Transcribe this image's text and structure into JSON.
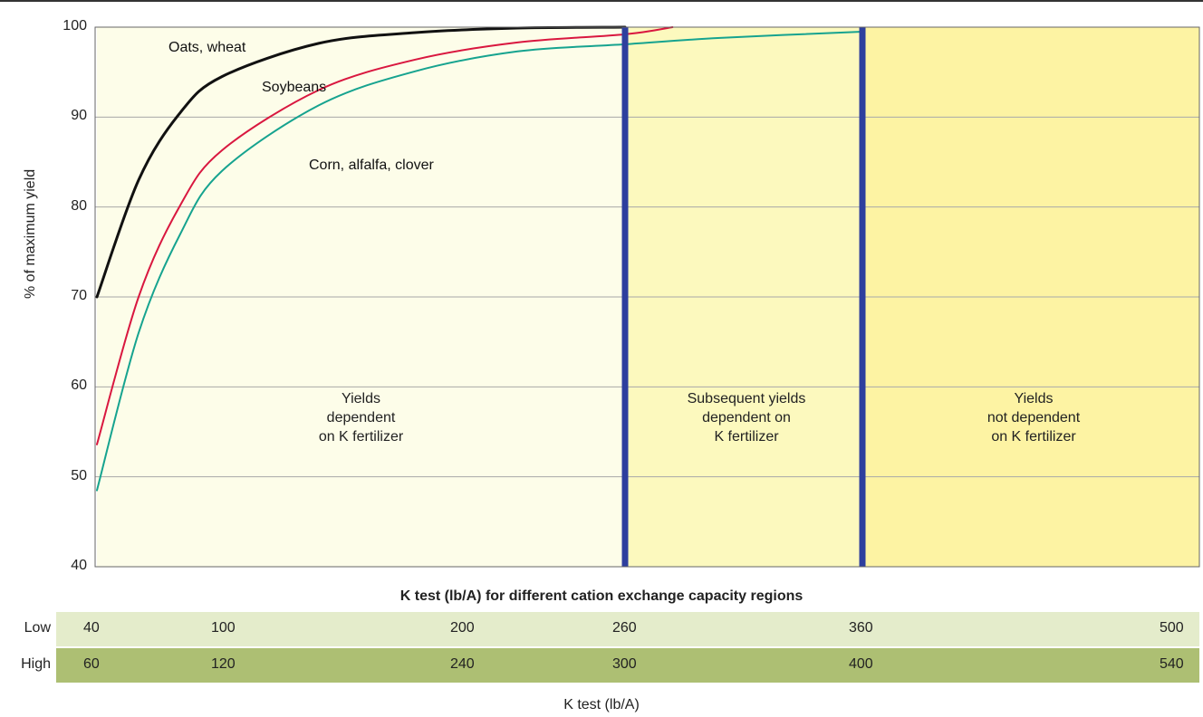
{
  "chart_data": {
    "type": "line",
    "ylabel": "% of maximum yield",
    "xlabel": "K test (lb/A)",
    "ylim": [
      40,
      100
    ],
    "yticks": [
      100,
      90,
      80,
      70,
      60,
      50,
      40
    ],
    "grid": true,
    "series": [
      {
        "name": "Oats, wheat",
        "color": "#111111",
        "points": [
          [
            40,
            70
          ],
          [
            60,
            83
          ],
          [
            80,
            90.5
          ],
          [
            100,
            94.5
          ],
          [
            140,
            98.2
          ],
          [
            180,
            99.4
          ],
          [
            220,
            99.9
          ],
          [
            260,
            100
          ]
        ]
      },
      {
        "name": "Soybeans",
        "color": "#d9173f",
        "points": [
          [
            40,
            53.6
          ],
          [
            60,
            70
          ],
          [
            80,
            80.2
          ],
          [
            100,
            86.3
          ],
          [
            140,
            93
          ],
          [
            180,
            96.4
          ],
          [
            220,
            98.3
          ],
          [
            260,
            99.2
          ],
          [
            280,
            100
          ]
        ]
      },
      {
        "name": "Corn, alfalfa, clover",
        "color": "#16a38f",
        "points": [
          [
            40,
            48.5
          ],
          [
            60,
            66
          ],
          [
            80,
            77
          ],
          [
            100,
            84
          ],
          [
            140,
            91.3
          ],
          [
            180,
            95.1
          ],
          [
            220,
            97.3
          ],
          [
            260,
            98.1
          ],
          [
            300,
            98.8
          ],
          [
            360,
            99.5
          ]
        ]
      }
    ],
    "regions": [
      {
        "label_lines": [
          "Yields",
          "dependent",
          "on K fertilizer"
        ],
        "color": "#fdfde9"
      },
      {
        "label_lines": [
          "Subsequent yields",
          "dependent on",
          "K fertilizer"
        ],
        "color": "#fcf9be"
      },
      {
        "label_lines": [
          "Yields",
          "not dependent",
          "on K fertilizer"
        ],
        "color": "#fdf3a3"
      }
    ],
    "region_boundaries": [
      260,
      360
    ],
    "divider_color": "#2e3f9e"
  },
  "table": {
    "title": "K test (lb/A) for different cation exchange capacity regions",
    "rows": [
      {
        "label": "Low",
        "values": [
          "40",
          "100",
          "200",
          "260",
          "360",
          "500"
        ],
        "color": "#e4eccb"
      },
      {
        "label": "High",
        "values": [
          "60",
          "120",
          "240",
          "300",
          "400",
          "540"
        ],
        "color": "#adbf73"
      }
    ]
  }
}
